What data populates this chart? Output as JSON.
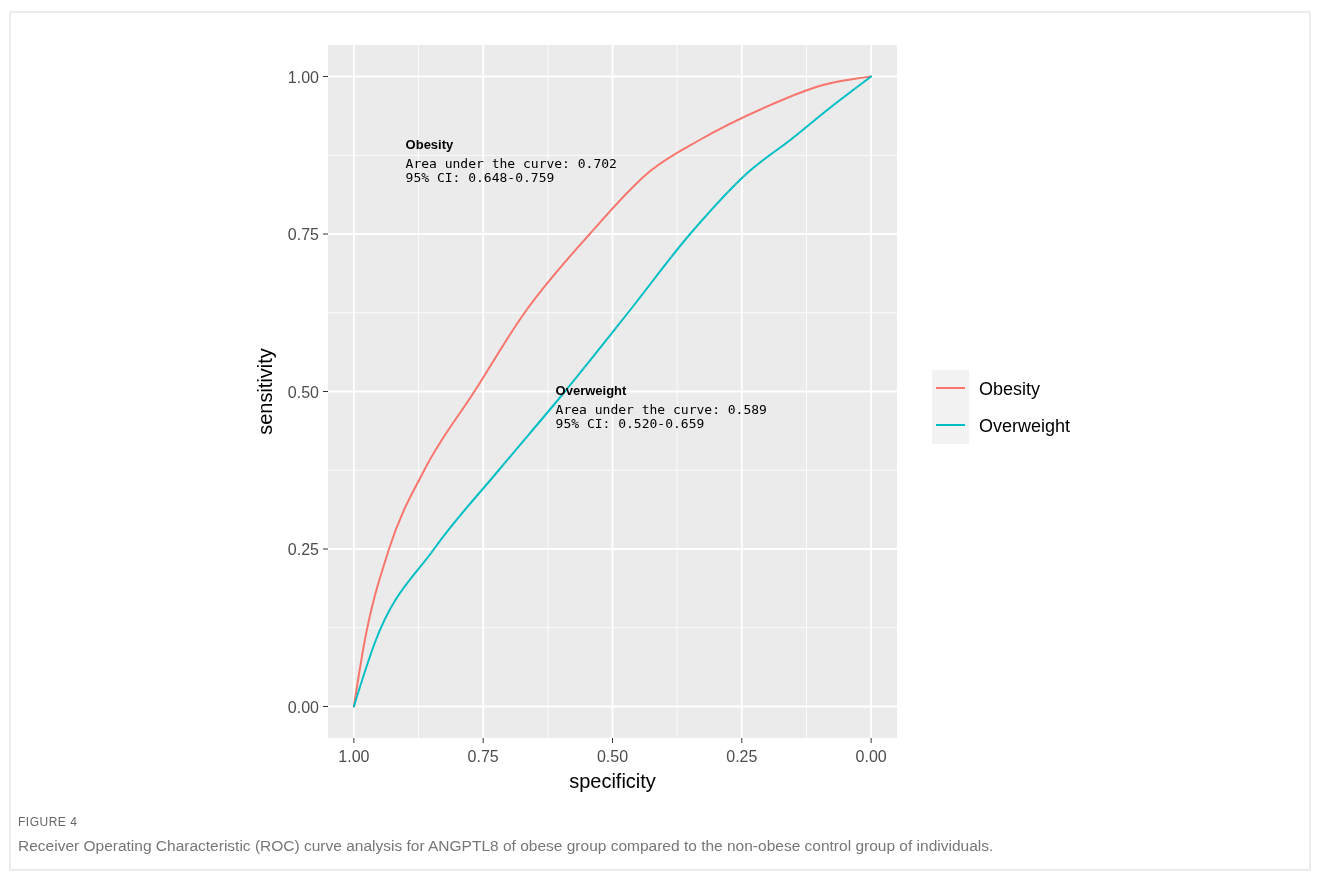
{
  "chart_data": {
    "type": "line",
    "xlabel": "specificity",
    "ylabel": "sensitivity",
    "xlim": [
      1.05,
      -0.05
    ],
    "ylim": [
      -0.05,
      1.05
    ],
    "xticks": [
      {
        "value": 1,
        "label": "1.00"
      },
      {
        "value": 0.75,
        "label": "0.75"
      },
      {
        "value": 0.5,
        "label": "0.50"
      },
      {
        "value": 0.25,
        "label": "0.25"
      },
      {
        "value": 0,
        "label": "0.00"
      }
    ],
    "yticks": [
      {
        "value": 0,
        "label": "0.00"
      },
      {
        "value": 0.25,
        "label": "0.25"
      },
      {
        "value": 0.5,
        "label": "0.50"
      },
      {
        "value": 0.75,
        "label": "0.75"
      },
      {
        "value": 1,
        "label": "1.00"
      }
    ],
    "grid": true,
    "legend": "right",
    "line_style": "solid",
    "marker": "none",
    "series": [
      {
        "name": "Obesity",
        "color": "#f8766d",
        "x": [
          1,
          0.98,
          0.932,
          0.864,
          0.767,
          0.67,
          0.544,
          0.427,
          0.33,
          0.194,
          0.1,
          0
        ],
        "values": [
          0,
          0.1,
          0.25,
          0.375,
          0.5,
          0.625,
          0.75,
          0.85,
          0.9,
          0.955,
          0.985,
          1
        ]
      },
      {
        "name": "Overweight",
        "color": "#00bfc4",
        "x": [
          1,
          0.96,
          0.845,
          0.72,
          0.592,
          0.47,
          0.35,
          0.235,
          0.155,
          0.08,
          0
        ],
        "values": [
          0,
          0.1,
          0.25,
          0.375,
          0.5,
          0.625,
          0.75,
          0.85,
          0.9,
          0.95,
          1
        ]
      }
    ],
    "annotations": [
      "Obesity",
      "Area under the curve: 0.702",
      "95% CI: 0.648-0.759",
      "Overweight",
      "Area under the curve: 0.589",
      "95% CI: 0.520-0.659",
      "FIGURE 4",
      "Receiver Operating Characteristic (ROC) curve analysis for ANGPTL8 of obese group compared to the non-obese control group of individuals."
    ]
  }
}
